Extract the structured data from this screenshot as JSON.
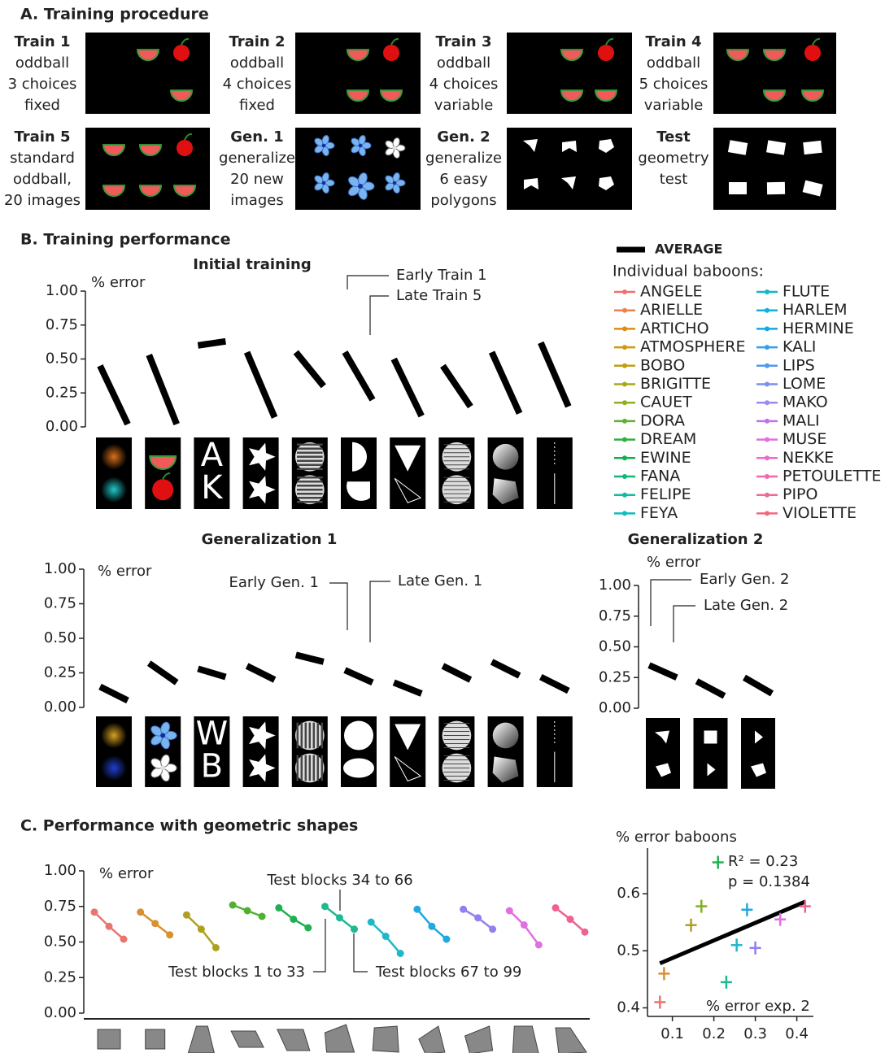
{
  "figure": {
    "panel_a": {
      "title": "A. Training procedure",
      "steps": [
        {
          "lines": [
            "Train 1",
            "oddball",
            "3 choices",
            "fixed"
          ]
        },
        {
          "lines": [
            "Train 2",
            "oddball",
            "4 choices",
            "fixed"
          ]
        },
        {
          "lines": [
            "Train 3",
            "oddball",
            "4 choices",
            "variable"
          ]
        },
        {
          "lines": [
            "Train 4",
            "oddball",
            "5 choices",
            "variable"
          ]
        },
        {
          "lines": [
            "Train 5",
            "standard",
            "oddball,",
            "20 images"
          ]
        },
        {
          "lines": [
            "Gen. 1",
            "generalize",
            "20 new",
            "images"
          ]
        },
        {
          "lines": [
            "Gen. 2",
            "generalize",
            "6 easy",
            "polygons"
          ]
        },
        {
          "lines": [
            "Test",
            "geometry",
            "test"
          ]
        }
      ]
    },
    "panel_b_title": "B. Training performance",
    "panel_c_title": "C. Performance with geometric shapes",
    "legend": {
      "average": "AVERAGE",
      "heading": "Individual baboons:",
      "baboons": [
        {
          "name": "ANGELE",
          "color": "#f07070"
        },
        {
          "name": "ARIELLE",
          "color": "#ee8050"
        },
        {
          "name": "ARTICHO",
          "color": "#e08c10"
        },
        {
          "name": "ATMOSPHERE",
          "color": "#d09a10"
        },
        {
          "name": "BOBO",
          "color": "#c0a010"
        },
        {
          "name": "BRIGITTE",
          "color": "#a8a818"
        },
        {
          "name": "CAUET",
          "color": "#90b020"
        },
        {
          "name": "DORA",
          "color": "#60b030"
        },
        {
          "name": "DREAM",
          "color": "#30b040"
        },
        {
          "name": "EWINE",
          "color": "#10b050"
        },
        {
          "name": "FANA",
          "color": "#10b878"
        },
        {
          "name": "FELIPE",
          "color": "#10bca0"
        },
        {
          "name": "FEYA",
          "color": "#10bcbc"
        },
        {
          "name": "FLUTE",
          "color": "#10b8c8"
        },
        {
          "name": "HARLEM",
          "color": "#10b0d8"
        },
        {
          "name": "HERMINE",
          "color": "#10a8e8"
        },
        {
          "name": "KALI",
          "color": "#30a0f0"
        },
        {
          "name": "LIPS",
          "color": "#5098f0"
        },
        {
          "name": "LOME",
          "color": "#7890f0"
        },
        {
          "name": "MAKO",
          "color": "#a088f0"
        },
        {
          "name": "MALI",
          "color": "#c070f0"
        },
        {
          "name": "MUSE",
          "color": "#e070e0"
        },
        {
          "name": "NEKKE",
          "color": "#f068c8"
        },
        {
          "name": "PETOULETTE",
          "color": "#f068b0"
        },
        {
          "name": "PIPO",
          "color": "#f06898"
        },
        {
          "name": "VIOLETTE",
          "color": "#f06880"
        }
      ]
    }
  },
  "chart_data": [
    {
      "type": "slope",
      "title": "Initial training",
      "y_label": "% error",
      "ylim": [
        0,
        1
      ],
      "yticks": [
        {
          "value": 0,
          "label": "0.00"
        },
        {
          "value": 0.25,
          "label": "0.25"
        },
        {
          "value": 0.5,
          "label": "0.50"
        },
        {
          "value": 0.75,
          "label": "0.75"
        },
        {
          "value": 1,
          "label": "1.00"
        }
      ],
      "early": [
        0.45,
        0.53,
        0.6,
        0.55,
        0.55,
        0.55,
        0.5,
        0.45,
        0.55,
        0.62
      ],
      "late": [
        0.02,
        0.02,
        0.63,
        0.07,
        0.3,
        0.2,
        0.08,
        0.15,
        0.1,
        0.15
      ],
      "annotations": [
        "Early Train 1",
        "Late Train 5"
      ],
      "letters": [
        "A",
        "K"
      ]
    },
    {
      "type": "slope",
      "title": "Generalization 1",
      "y_label": "% error",
      "ylim": [
        0,
        1
      ],
      "yticks": [
        {
          "value": 0,
          "label": "0.00"
        },
        {
          "value": 0.25,
          "label": "0.25"
        },
        {
          "value": 0.5,
          "label": "0.50"
        },
        {
          "value": 0.75,
          "label": "0.75"
        },
        {
          "value": 1,
          "label": "1.00"
        }
      ],
      "early": [
        0.15,
        0.32,
        0.28,
        0.3,
        0.38,
        0.27,
        0.18,
        0.3,
        0.33,
        0.22
      ],
      "late": [
        0.05,
        0.18,
        0.22,
        0.2,
        0.33,
        0.18,
        0.1,
        0.2,
        0.23,
        0.12
      ],
      "annotations": [
        "Early Gen. 1",
        "Late Gen. 1"
      ],
      "letters": [
        "W",
        "B"
      ]
    },
    {
      "type": "slope",
      "title": "Generalization 2",
      "y_label": "% error",
      "ylim": [
        0,
        1
      ],
      "yticks": [
        {
          "value": 0,
          "label": "0.00"
        },
        {
          "value": 0.25,
          "label": "0.25"
        },
        {
          "value": 0.5,
          "label": "0.50"
        },
        {
          "value": 0.75,
          "label": "0.75"
        },
        {
          "value": 1,
          "label": "1.00"
        }
      ],
      "early": [
        0.35,
        0.22,
        0.25
      ],
      "late": [
        0.25,
        0.1,
        0.12
      ],
      "annotations": [
        "Early Gen. 2",
        "Late Gen. 2"
      ]
    },
    {
      "type": "line-groups",
      "y_label": "% error",
      "ylim": [
        0,
        1
      ],
      "yticks": [
        {
          "value": 0,
          "label": "0.00"
        },
        {
          "value": 0.25,
          "label": "0.25"
        },
        {
          "value": 0.5,
          "label": "0.50"
        },
        {
          "value": 0.75,
          "label": "0.75"
        },
        {
          "value": 1,
          "label": "1.00"
        }
      ],
      "series": [
        {
          "color": "#e8766d",
          "values": [
            0.71,
            0.61,
            0.52
          ]
        },
        {
          "color": "#d89030",
          "values": [
            0.71,
            0.63,
            0.55
          ]
        },
        {
          "color": "#b0a020",
          "values": [
            0.69,
            0.59,
            0.46
          ]
        },
        {
          "color": "#50b030",
          "values": [
            0.76,
            0.72,
            0.68
          ]
        },
        {
          "color": "#20b050",
          "values": [
            0.74,
            0.66,
            0.6
          ]
        },
        {
          "color": "#20b890",
          "values": [
            0.75,
            0.67,
            0.59
          ]
        },
        {
          "color": "#20b8c8",
          "values": [
            0.64,
            0.54,
            0.42
          ]
        },
        {
          "color": "#20a8e0",
          "values": [
            0.73,
            0.61,
            0.52
          ]
        },
        {
          "color": "#9080f0",
          "values": [
            0.73,
            0.67,
            0.59
          ]
        },
        {
          "color": "#e070e0",
          "values": [
            0.72,
            0.62,
            0.48
          ]
        },
        {
          "color": "#f06090",
          "values": [
            0.74,
            0.66,
            0.57
          ]
        }
      ],
      "annotations": [
        "Test blocks 34 to 66",
        "Test blocks 1 to 33",
        "Test blocks 67 to 99"
      ]
    },
    {
      "type": "scatter",
      "y_label": "% error baboons",
      "x_label": "% error exp. 2",
      "xlim": [
        0.04,
        0.44
      ],
      "ylim": [
        0.385,
        0.68
      ],
      "xticks": [
        0.1,
        0.2,
        0.3,
        0.4
      ],
      "yticks": [
        0.4,
        0.5,
        0.6
      ],
      "x": [
        0.07,
        0.08,
        0.145,
        0.17,
        0.21,
        0.23,
        0.255,
        0.28,
        0.3,
        0.36,
        0.42
      ],
      "y": [
        0.41,
        0.46,
        0.545,
        0.578,
        0.655,
        0.445,
        0.51,
        0.572,
        0.505,
        0.555,
        0.578
      ],
      "colors": [
        "#e8766d",
        "#d89030",
        "#b0a020",
        "#80b020",
        "#20b050",
        "#20b890",
        "#20b8c8",
        "#20a8e0",
        "#9080f0",
        "#e070e0",
        "#f06090"
      ],
      "fit": {
        "x": [
          0.07,
          0.42
        ],
        "y": [
          0.478,
          0.586
        ]
      },
      "annotations": [
        "R² = 0.23",
        "p = 0.1384"
      ]
    }
  ]
}
